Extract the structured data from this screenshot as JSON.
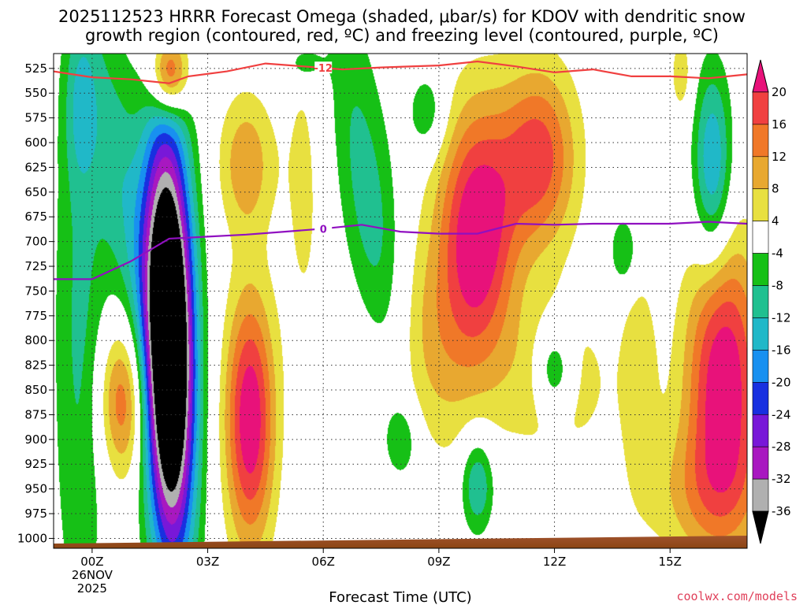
{
  "chart_data": {
    "type": "heatmap",
    "title_line1": "2025112523 HRRR Forecast Omega (shaded, μbar/s) for KDOV with dendritic snow",
    "title_line2": "growth region (contoured, red, ºC) and freezing level (contoured, purple, ºC)",
    "xlabel": "Forecast Time (UTC)",
    "credit": "coolwx.com/models",
    "credit_color": "#e0405a",
    "x_range_hours": [
      -1,
      17
    ],
    "y_range_hpa": [
      510,
      1010
    ],
    "y_ticks": [
      "525",
      "550",
      "575",
      "600",
      "625",
      "650",
      "675",
      "700",
      "725",
      "750",
      "775",
      "800",
      "825",
      "850",
      "875",
      "900",
      "925",
      "950",
      "975",
      "1000"
    ],
    "x_ticks": [
      {
        "hour": 0,
        "label": "00Z",
        "sub1": "26NOV",
        "sub2": "2025"
      },
      {
        "hour": 3,
        "label": "03Z"
      },
      {
        "hour": 6,
        "label": "06Z"
      },
      {
        "hour": 9,
        "label": "09Z"
      },
      {
        "hour": 12,
        "label": "12Z"
      },
      {
        "hour": 15,
        "label": "15Z"
      }
    ],
    "colorbar": {
      "labels": [
        "20",
        "16",
        "12",
        "8",
        "4",
        "-4",
        "-8",
        "-12",
        "-16",
        "-20",
        "-24",
        "-28",
        "-32",
        "-36"
      ],
      "colors": [
        "#e8127a",
        "#f04040",
        "#f07828",
        "#e8a830",
        "#e8e040",
        "#ffffff",
        "#16c016",
        "#20c090",
        "#20b8c8",
        "#1890f0",
        "#1830e0",
        "#7818d8",
        "#a818c0",
        "#b0b0b0",
        "#000000"
      ]
    },
    "contours": {
      "dgz_label": "-12",
      "dgz_color": "#f04040",
      "dgz_line": [
        [
          -1,
          528
        ],
        [
          0,
          534
        ],
        [
          1,
          536
        ],
        [
          2,
          540
        ],
        [
          2.5,
          533
        ],
        [
          3.5,
          528
        ],
        [
          4.5,
          520
        ],
        [
          5.5,
          523
        ],
        [
          6.5,
          526
        ],
        [
          7.5,
          524
        ],
        [
          9,
          522
        ],
        [
          10,
          518
        ],
        [
          11,
          523
        ],
        [
          12,
          529
        ],
        [
          13,
          526
        ],
        [
          14,
          533
        ],
        [
          15,
          533
        ],
        [
          16,
          535
        ],
        [
          17,
          531
        ]
      ],
      "freezing_label": "0",
      "freezing_color": "#9010c0",
      "freezing_line": [
        [
          -1,
          738
        ],
        [
          0,
          738
        ],
        [
          1,
          720
        ],
        [
          2,
          697
        ],
        [
          3,
          695
        ],
        [
          4,
          693
        ],
        [
          5,
          690
        ],
        [
          6,
          687
        ],
        [
          7,
          683
        ],
        [
          8,
          690
        ],
        [
          9,
          692
        ],
        [
          10,
          692
        ],
        [
          11,
          682
        ],
        [
          12,
          683
        ],
        [
          13,
          682
        ],
        [
          14,
          682
        ],
        [
          15,
          682
        ],
        [
          16,
          680
        ],
        [
          17,
          682
        ]
      ]
    },
    "fields": [
      {
        "kind": "neg",
        "hour": 2.0,
        "p": 800,
        "sx": 0.45,
        "sp": 150,
        "a": -60,
        "rot": 0.04
      },
      {
        "kind": "neg",
        "hour": 0.8,
        "p": 650,
        "sx": 0.5,
        "sp": 120,
        "a": -10,
        "rot": 0.3
      },
      {
        "kind": "neg",
        "hour": -0.3,
        "p": 800,
        "sx": 0.5,
        "sp": 220,
        "a": -9
      },
      {
        "kind": "pos",
        "hour": 2.0,
        "p": 530,
        "sx": 0.35,
        "sp": 30,
        "a": 24
      },
      {
        "kind": "pos",
        "hour": 4.1,
        "p": 880,
        "sx": 0.45,
        "sp": 90,
        "a": 24
      },
      {
        "kind": "pos",
        "hour": 4.0,
        "p": 620,
        "sx": 0.5,
        "sp": 50,
        "a": 11
      },
      {
        "kind": "pos",
        "hour": 0.8,
        "p": 860,
        "sx": 0.45,
        "sp": 55,
        "a": 16
      },
      {
        "kind": "pos",
        "hour": 5.5,
        "p": 640,
        "sx": 0.4,
        "sp": 130,
        "a": 5
      },
      {
        "kind": "pos",
        "hour": 10.0,
        "p": 690,
        "sx": 0.7,
        "sp": 90,
        "a": 24
      },
      {
        "kind": "pos",
        "hour": 11.6,
        "p": 615,
        "sx": 0.7,
        "sp": 65,
        "a": 18
      },
      {
        "kind": "pos",
        "hour": 8.5,
        "p": 815,
        "sx": 1.0,
        "sp": 85,
        "a": 9
      },
      {
        "kind": "pos",
        "hour": 12.0,
        "p": 840,
        "sx": 1.1,
        "sp": 60,
        "a": 7
      },
      {
        "kind": "pos",
        "hour": 16.4,
        "p": 840,
        "sx": 0.7,
        "sp": 100,
        "a": 24
      },
      {
        "kind": "pos",
        "hour": 15.9,
        "p": 955,
        "sx": 1.2,
        "sp": 50,
        "a": 8
      },
      {
        "kind": "pos",
        "hour": 15.3,
        "p": 530,
        "sx": 0.2,
        "sp": 30,
        "a": 7
      },
      {
        "kind": "pos",
        "hour": 14.2,
        "p": 830,
        "sx": 0.35,
        "sp": 80,
        "a": 6
      },
      {
        "kind": "neg",
        "hour": 7.3,
        "p": 690,
        "sx": 0.55,
        "sp": 160,
        "a": -11,
        "rot": 0.35
      },
      {
        "kind": "neg",
        "hour": 16.1,
        "p": 625,
        "sx": 0.35,
        "sp": 70,
        "a": -17
      },
      {
        "kind": "neg",
        "hour": 13.8,
        "p": 710,
        "sx": 0.25,
        "sp": 25,
        "a": -9
      },
      {
        "kind": "neg",
        "hour": 12.0,
        "p": 830,
        "sx": 0.35,
        "sp": 30,
        "a": -13
      },
      {
        "kind": "neg",
        "hour": 10.0,
        "p": 945,
        "sx": 0.3,
        "sp": 35,
        "a": -13
      },
      {
        "kind": "neg",
        "hour": 8.0,
        "p": 900,
        "sx": 0.3,
        "sp": 25,
        "a": -8
      },
      {
        "kind": "neg",
        "hour": 5.5,
        "p": 520,
        "sx": 0.35,
        "sp": 15,
        "a": -8
      },
      {
        "kind": "neg",
        "hour": 8.7,
        "p": 570,
        "sx": 0.35,
        "sp": 30,
        "a": -8
      },
      {
        "kind": "neg",
        "hour": -0.3,
        "p": 560,
        "sx": 0.3,
        "sp": 60,
        "a": -8
      }
    ]
  }
}
